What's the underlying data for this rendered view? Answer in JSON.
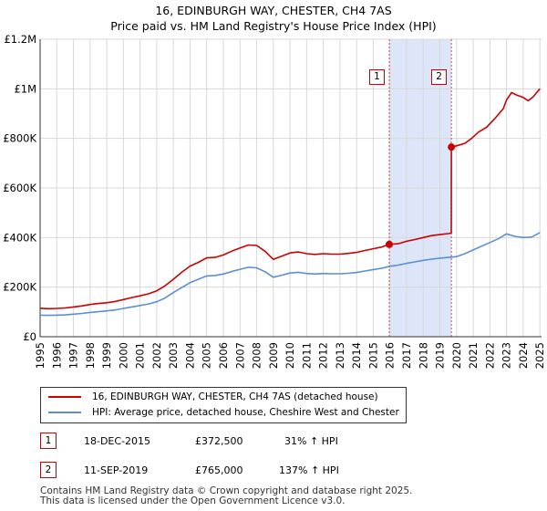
{
  "chart_data": {
    "type": "line",
    "title": "16, EDINBURGH WAY, CHESTER, CH4 7AS",
    "subtitle": "Price paid vs. HM Land Registry's House Price Index (HPI)",
    "xlim": [
      1995,
      2025.1
    ],
    "ylim": [
      0,
      1200000
    ],
    "y_ticks": [
      0,
      200000,
      400000,
      600000,
      800000,
      1000000,
      1200000
    ],
    "y_tick_labels": [
      "£0",
      "£200K",
      "£400K",
      "£600K",
      "£800K",
      "£1M",
      "£1.2M"
    ],
    "x_ticks": [
      1995,
      1996,
      1997,
      1998,
      1999,
      2000,
      2001,
      2002,
      2003,
      2004,
      2005,
      2006,
      2007,
      2008,
      2009,
      2010,
      2011,
      2012,
      2013,
      2014,
      2015,
      2016,
      2017,
      2018,
      2019,
      2020,
      2021,
      2022,
      2023,
      2024,
      2025
    ],
    "grid": true,
    "shaded_region": [
      2015.96,
      2019.69
    ],
    "colors": {
      "property": "#cc0000",
      "hpi": "#5b8fd1",
      "shade": "#dde6f8",
      "grid": "#d8d8d8",
      "event": "#cc0000"
    },
    "series": [
      {
        "name": "16, EDINBURGH WAY, CHESTER, CH4 7AS (detached house)",
        "color": "#cc0000",
        "x": [
          1995,
          1995.5,
          1996,
          1996.5,
          1997,
          1997.5,
          1998,
          1998.5,
          1999,
          1999.5,
          2000,
          2000.5,
          2001,
          2001.5,
          2002,
          2002.5,
          2003,
          2003.5,
          2004,
          2004.5,
          2005,
          2005.5,
          2006,
          2006.5,
          2007,
          2007.5,
          2008,
          2008.5,
          2009,
          2009.5,
          2010,
          2010.5,
          2011,
          2011.5,
          2012,
          2012.5,
          2013,
          2013.5,
          2014,
          2014.5,
          2015,
          2015.5,
          2015.96,
          2016.5,
          2017,
          2017.5,
          2018,
          2018.5,
          2019,
          2019.5,
          2019.68,
          2019.69,
          2020,
          2020.5,
          2020.9,
          2021.3,
          2021.8,
          2022.3,
          2022.8,
          2023.0,
          2023.3,
          2023.6,
          2024.0,
          2024.3,
          2024.6,
          2025.0
        ],
        "y": [
          115000,
          113000,
          114000,
          116000,
          120000,
          124000,
          130000,
          134000,
          137000,
          142000,
          150000,
          158000,
          165000,
          173000,
          185000,
          205000,
          232000,
          260000,
          285000,
          300000,
          318000,
          320000,
          330000,
          345000,
          358000,
          370000,
          368000,
          345000,
          312000,
          325000,
          338000,
          342000,
          335000,
          332000,
          335000,
          333000,
          333000,
          336000,
          340000,
          348000,
          355000,
          362000,
          372500,
          375000,
          385000,
          392000,
          400000,
          408000,
          412000,
          416000,
          418000,
          765000,
          770000,
          780000,
          800000,
          825000,
          845000,
          880000,
          920000,
          955000,
          985000,
          975000,
          965000,
          952000,
          968000,
          1000000
        ]
      },
      {
        "name": "HPI: Average price, detached house, Cheshire West and Chester",
        "color": "#5b8fd1",
        "x": [
          1995,
          1995.5,
          1996,
          1996.5,
          1997,
          1997.5,
          1998,
          1998.5,
          1999,
          1999.5,
          2000,
          2000.5,
          2001,
          2001.5,
          2002,
          2002.5,
          2003,
          2003.5,
          2004,
          2004.5,
          2005,
          2005.5,
          2006,
          2006.5,
          2007,
          2007.5,
          2008,
          2008.5,
          2009,
          2009.5,
          2010,
          2010.5,
          2011,
          2011.5,
          2012,
          2012.5,
          2013,
          2013.5,
          2014,
          2014.5,
          2015,
          2015.5,
          2016,
          2016.5,
          2017,
          2017.5,
          2018,
          2018.5,
          2019,
          2019.5,
          2020,
          2020.5,
          2021,
          2021.5,
          2022,
          2022.5,
          2023,
          2023.5,
          2024,
          2024.5,
          2025.0
        ],
        "y": [
          87000,
          86000,
          87000,
          88000,
          91000,
          94000,
          98000,
          101000,
          104000,
          108000,
          114000,
          120000,
          126000,
          132000,
          141000,
          156000,
          178000,
          198000,
          218000,
          232000,
          245000,
          247000,
          253000,
          263000,
          272000,
          280000,
          278000,
          262000,
          240000,
          248000,
          257000,
          260000,
          255000,
          253000,
          255000,
          254000,
          254000,
          256000,
          259000,
          265000,
          271000,
          276000,
          284000,
          289000,
          296000,
          302000,
          308000,
          313000,
          317000,
          320000,
          323000,
          335000,
          350000,
          365000,
          380000,
          395000,
          415000,
          405000,
          400000,
          402000,
          420000
        ]
      }
    ],
    "events": [
      {
        "label": "1",
        "x": 2015.96,
        "y": 372500,
        "date": "18-DEC-2015",
        "price": "£372,500",
        "hpi_change": "31% ↑ HPI"
      },
      {
        "label": "2",
        "x": 2019.69,
        "y": 765000,
        "date": "11-SEP-2019",
        "price": "£765,000",
        "hpi_change": "137% ↑ HPI"
      }
    ]
  },
  "legend": {
    "property_label": "16, EDINBURGH WAY, CHESTER, CH4 7AS (detached house)",
    "hpi_label": "HPI: Average price, detached house, Cheshire West and Chester"
  },
  "footer": {
    "line1": "Contains HM Land Registry data © Crown copyright and database right 2025.",
    "line2": "This data is licensed under the Open Government Licence v3.0."
  }
}
